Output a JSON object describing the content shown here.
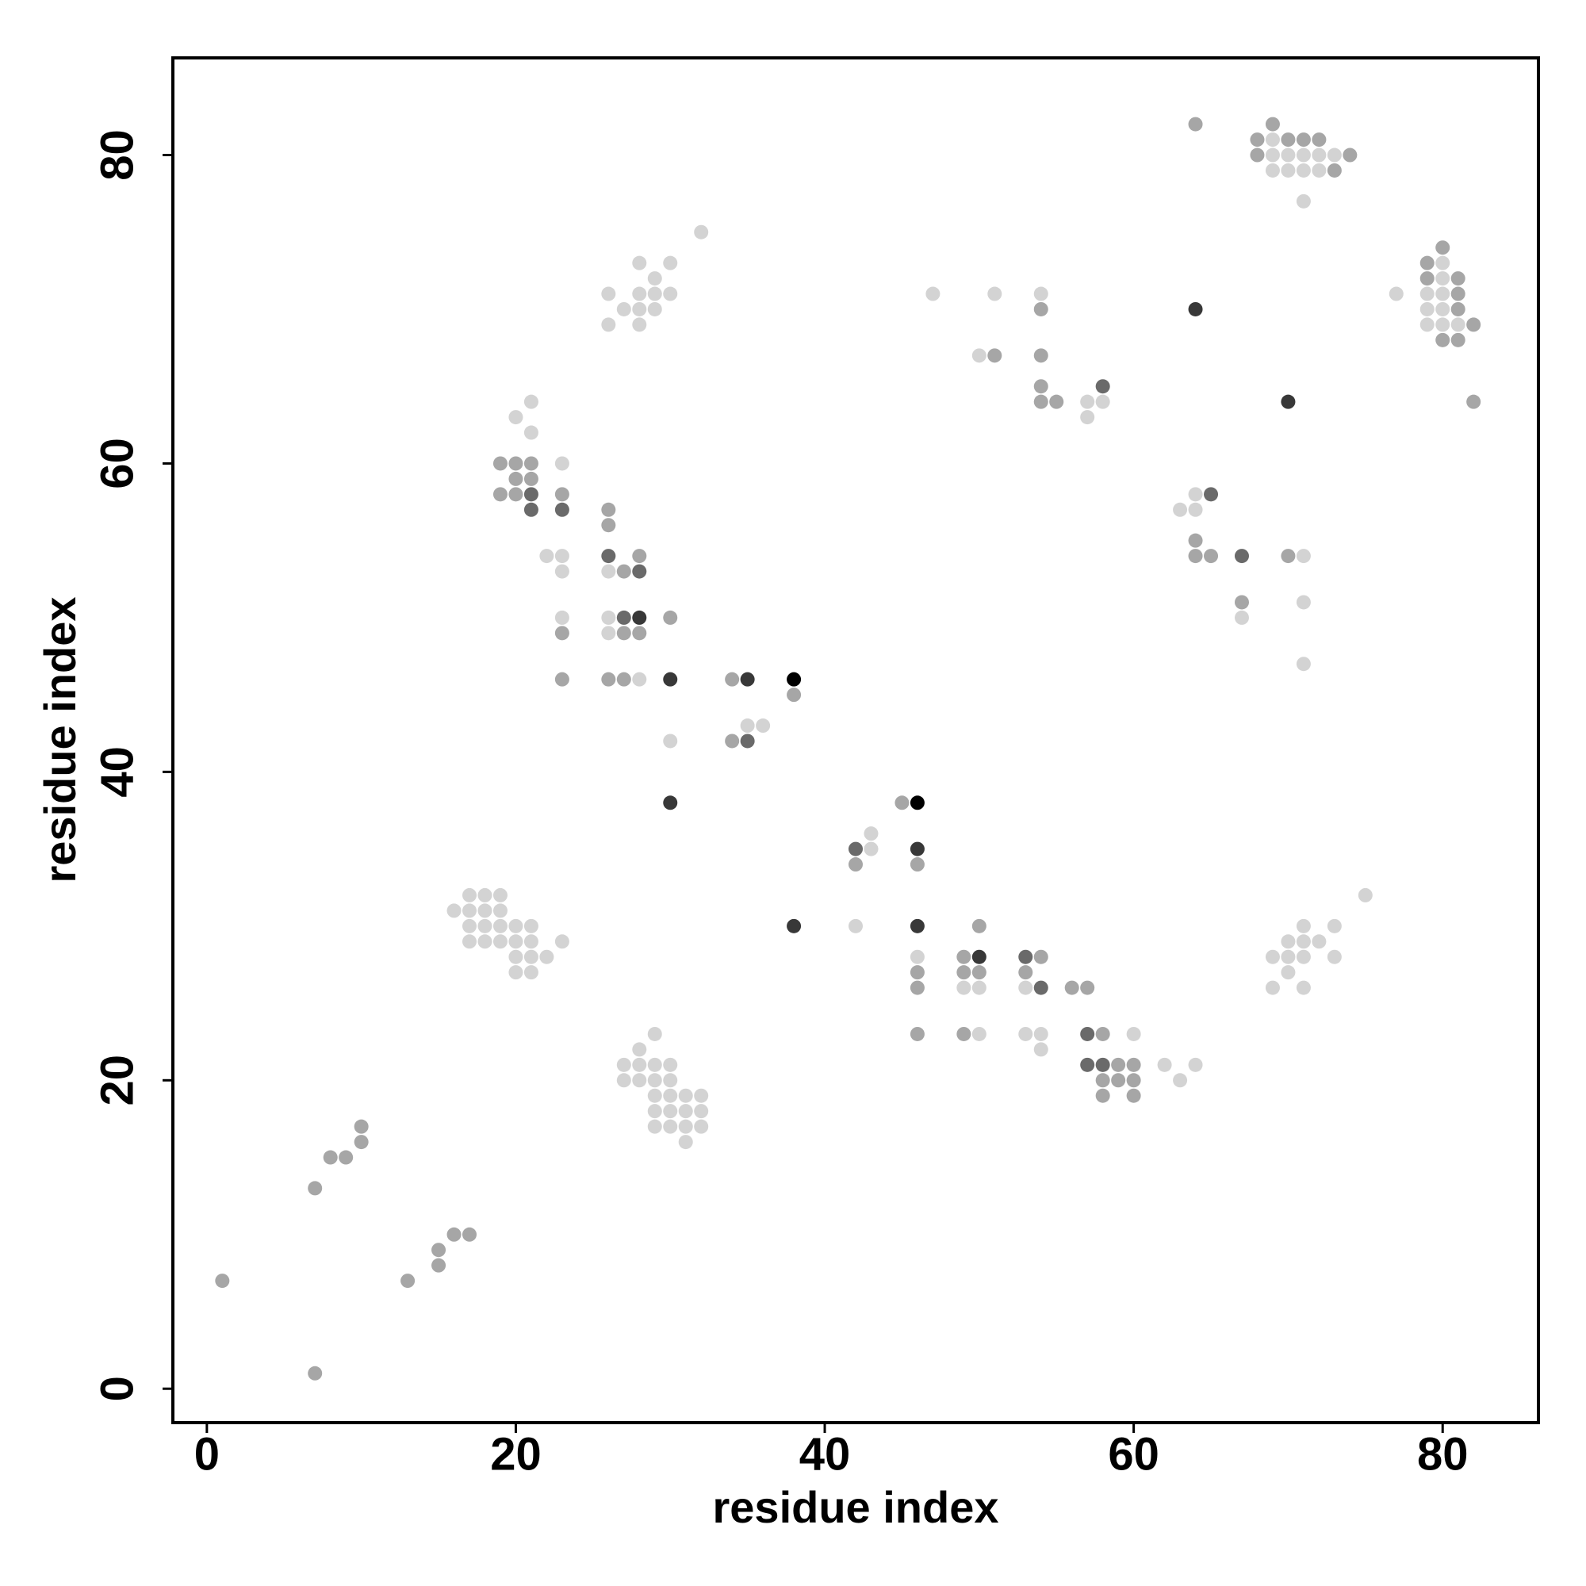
{
  "chart_data": {
    "type": "scatter",
    "x_label": "residue index",
    "y_label": "residue index",
    "xlim": [
      -2.2,
      86.2
    ],
    "ylim": [
      -2.2,
      86.3
    ],
    "xticks": [
      0,
      20,
      40,
      60,
      80
    ],
    "yticks": [
      0,
      20,
      40,
      60,
      80
    ],
    "grid": false,
    "series": [
      {
        "color": "#d3d3d3",
        "x": [
          17,
          18,
          19,
          16,
          17,
          18,
          19,
          17,
          18,
          19,
          20,
          21,
          17,
          18,
          19,
          20,
          21,
          23,
          20,
          21,
          22,
          20,
          21,
          29,
          28,
          27,
          28,
          29,
          30,
          27,
          28,
          29,
          30,
          29,
          30,
          31,
          32,
          29,
          30,
          31,
          32,
          29,
          30,
          31,
          32,
          31,
          32,
          28,
          30,
          29,
          26,
          28,
          29,
          30,
          27,
          28,
          29,
          26,
          28,
          21,
          20,
          21,
          23,
          22,
          23,
          23,
          26,
          23,
          26,
          26,
          28,
          30,
          35,
          36,
          43,
          43,
          42,
          46,
          49,
          50,
          53,
          50,
          53,
          54,
          60,
          54,
          62,
          64,
          63,
          75,
          71,
          73,
          70,
          71,
          72,
          69,
          70,
          71,
          73,
          70,
          69,
          71,
          64,
          63,
          64,
          71,
          71,
          67,
          71,
          47,
          51,
          54,
          50,
          57,
          58,
          57,
          69,
          69,
          70,
          71,
          72,
          73,
          69,
          70,
          71,
          72,
          71,
          80,
          80,
          77,
          79,
          80,
          79,
          80,
          79,
          80,
          81
        ],
        "y": [
          32,
          32,
          32,
          31,
          31,
          31,
          31,
          30,
          30,
          30,
          30,
          30,
          29,
          29,
          29,
          29,
          29,
          29,
          28,
          28,
          28,
          27,
          27,
          23,
          22,
          21,
          21,
          21,
          21,
          20,
          20,
          20,
          20,
          19,
          19,
          19,
          19,
          18,
          18,
          18,
          18,
          17,
          17,
          17,
          17,
          16,
          75,
          73,
          73,
          72,
          71,
          71,
          71,
          71,
          70,
          70,
          70,
          69,
          69,
          64,
          63,
          62,
          60,
          54,
          54,
          53,
          53,
          50,
          50,
          49,
          46,
          42,
          43,
          43,
          36,
          35,
          30,
          28,
          26,
          26,
          26,
          23,
          23,
          23,
          23,
          22,
          21,
          21,
          20,
          32,
          30,
          30,
          29,
          29,
          29,
          28,
          28,
          28,
          28,
          27,
          26,
          26,
          58,
          57,
          57,
          54,
          51,
          50,
          47,
          71,
          71,
          71,
          67,
          64,
          64,
          63,
          81,
          80,
          80,
          80,
          80,
          80,
          79,
          79,
          79,
          79,
          77,
          73,
          72,
          71,
          71,
          71,
          70,
          70,
          69,
          69,
          69
        ]
      },
      {
        "color": "#a6a6a6",
        "x": [
          1,
          7,
          7,
          8,
          9,
          10,
          10,
          13,
          15,
          15,
          16,
          17,
          19,
          20,
          21,
          20,
          21,
          19,
          20,
          23,
          26,
          26,
          28,
          27,
          30,
          23,
          27,
          28,
          23,
          26,
          27,
          34,
          38,
          34,
          45,
          42,
          46,
          50,
          49,
          54,
          46,
          49,
          50,
          53,
          46,
          56,
          57,
          46,
          49,
          58,
          59,
          60,
          58,
          59,
          60,
          58,
          60,
          64,
          64,
          65,
          70,
          67,
          54,
          51,
          54,
          54,
          54,
          55,
          64,
          69,
          68,
          70,
          71,
          72,
          68,
          74,
          73,
          80,
          79,
          79,
          81,
          81,
          81,
          82,
          80,
          81,
          82
        ],
        "y": [
          7,
          1,
          13,
          15,
          15,
          16,
          17,
          7,
          8,
          9,
          10,
          10,
          60,
          60,
          60,
          59,
          59,
          58,
          58,
          58,
          57,
          56,
          54,
          53,
          50,
          49,
          49,
          49,
          46,
          46,
          46,
          46,
          45,
          42,
          38,
          34,
          34,
          30,
          28,
          28,
          27,
          27,
          27,
          27,
          26,
          26,
          26,
          23,
          23,
          23,
          21,
          21,
          20,
          20,
          20,
          19,
          19,
          55,
          54,
          54,
          54,
          51,
          70,
          67,
          67,
          65,
          64,
          64,
          82,
          82,
          81,
          81,
          81,
          81,
          80,
          80,
          79,
          74,
          73,
          72,
          72,
          71,
          70,
          69,
          68,
          68,
          64
        ]
      },
      {
        "color": "#6a6a6a",
        "x": [
          21,
          21,
          23,
          26,
          28,
          27,
          35,
          42,
          53,
          54,
          57,
          57,
          58,
          65,
          67,
          58
        ],
        "y": [
          58,
          57,
          57,
          54,
          53,
          50,
          42,
          35,
          28,
          26,
          23,
          21,
          21,
          58,
          54,
          65
        ]
      },
      {
        "color": "#383838",
        "x": [
          28,
          30,
          30,
          35,
          38,
          46,
          46,
          50,
          64,
          70
        ],
        "y": [
          50,
          46,
          38,
          46,
          30,
          35,
          30,
          28,
          70,
          64
        ]
      },
      {
        "color": "#000000",
        "x": [
          38,
          46
        ],
        "y": [
          46,
          38
        ]
      }
    ]
  }
}
